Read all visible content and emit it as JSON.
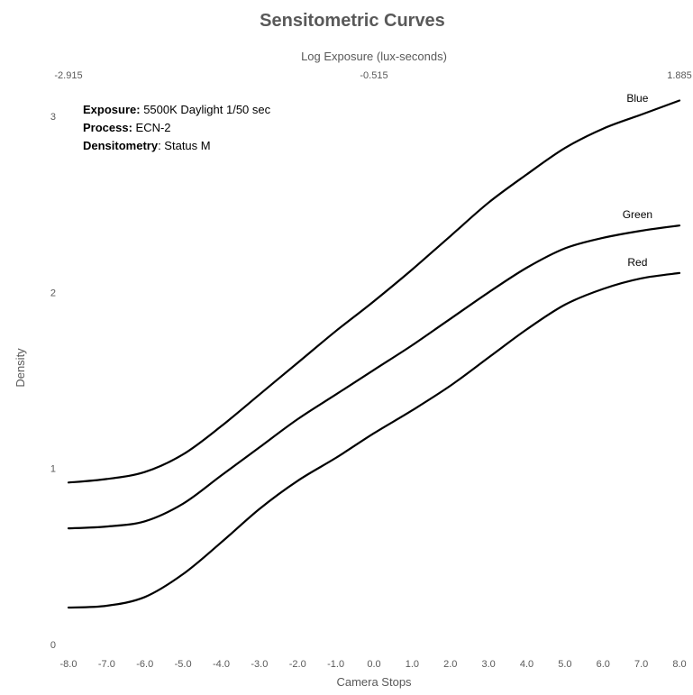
{
  "chart_data": {
    "type": "line",
    "title": "Sensitometric Curves",
    "xlabel": "Camera Stops",
    "ylabel": "Density",
    "x2label": "Log Exposure (lux-seconds)",
    "xlim": [
      -8.0,
      8.0
    ],
    "ylim": [
      0,
      3.2
    ],
    "grid": false,
    "x_ticks": [
      "-8.0",
      "-7.0",
      "-6.0",
      "-5.0",
      "-4.0",
      "-3.0",
      "-2.0",
      "-1.0",
      "0.0",
      "1.0",
      "2.0",
      "3.0",
      "4.0",
      "5.0",
      "6.0",
      "7.0",
      "8.0"
    ],
    "y_ticks": [
      "0",
      "1",
      "2",
      "3"
    ],
    "x2_ticks": [
      "-2.915",
      "-0.515",
      "1.885"
    ],
    "x": [
      -8,
      -7,
      -6,
      -5,
      -4,
      -3,
      -2,
      -1,
      0,
      1,
      2,
      3,
      4,
      5,
      6,
      7,
      8
    ],
    "series": [
      {
        "name": "Blue",
        "color": "#000000",
        "values": [
          0.92,
          0.94,
          0.98,
          1.08,
          1.24,
          1.42,
          1.6,
          1.78,
          1.95,
          2.13,
          2.32,
          2.51,
          2.67,
          2.82,
          2.93,
          3.01,
          3.09
        ]
      },
      {
        "name": "Green",
        "color": "#000000",
        "values": [
          0.66,
          0.67,
          0.7,
          0.8,
          0.96,
          1.12,
          1.28,
          1.42,
          1.56,
          1.7,
          1.85,
          2.0,
          2.14,
          2.25,
          2.31,
          2.35,
          2.38
        ]
      },
      {
        "name": "Red",
        "color": "#000000",
        "values": [
          0.21,
          0.22,
          0.27,
          0.4,
          0.58,
          0.77,
          0.93,
          1.06,
          1.2,
          1.33,
          1.47,
          1.63,
          1.79,
          1.93,
          2.02,
          2.08,
          2.11
        ]
      }
    ],
    "annotations": [
      {
        "label": "Exposure:",
        "value": " 5500K Daylight 1/50 sec"
      },
      {
        "label": "Process:",
        "value": " ECN-2"
      },
      {
        "label": "Densitometry",
        "value": ": Status M"
      }
    ]
  }
}
